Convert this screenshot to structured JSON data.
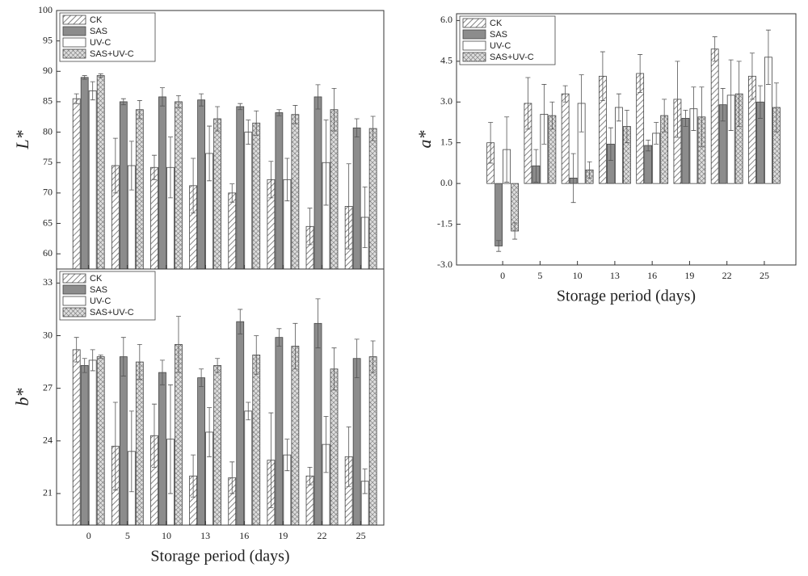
{
  "chart_data": [
    {
      "type": "bar",
      "ylabel": "L*",
      "categories": [
        "0",
        "5",
        "10",
        "13",
        "16",
        "19",
        "22",
        "25"
      ],
      "ylim": [
        57.5,
        100
      ],
      "yticks": [
        60,
        65,
        70,
        75,
        80,
        85,
        90,
        95,
        100
      ],
      "legend": "upper left",
      "series": [
        {
          "name": "CK",
          "color": "#ffffff",
          "pattern": "hatch",
          "values": [
            85.5,
            74.5,
            74.2,
            71.2,
            70,
            72.2,
            64.5,
            67.8
          ],
          "errors": [
            0.8,
            4.5,
            2,
            4.5,
            1.5,
            3,
            3,
            7
          ]
        },
        {
          "name": "SAS",
          "color": "#8c8c8c",
          "pattern": "solid",
          "values": [
            89,
            85,
            85.8,
            85.3,
            84.2,
            83.2,
            85.8,
            80.7
          ],
          "errors": [
            0.3,
            0.5,
            1.5,
            1,
            0.5,
            0.5,
            2,
            1.5
          ]
        },
        {
          "name": "UV-C",
          "color": "#ffffff",
          "pattern": "solid",
          "values": [
            86.8,
            74.5,
            74.2,
            76.5,
            80,
            72.2,
            75,
            66
          ],
          "errors": [
            1.5,
            4,
            5,
            4.5,
            2,
            3.5,
            7,
            5
          ]
        },
        {
          "name": "SAS+UV-C",
          "color": "#ffffff",
          "pattern": "cross",
          "values": [
            89.3,
            83.7,
            85,
            82.2,
            81.5,
            82.9,
            83.7,
            80.6
          ],
          "errors": [
            0.3,
            1.5,
            1,
            2,
            2,
            1.5,
            3.5,
            2
          ]
        }
      ]
    },
    {
      "type": "bar",
      "ylabel": "b*",
      "xlabel": "Storage period (days)",
      "categories": [
        "0",
        "5",
        "10",
        "13",
        "16",
        "19",
        "22",
        "25"
      ],
      "ylim": [
        19.2,
        33.8
      ],
      "yticks": [
        21,
        24,
        27,
        30,
        33
      ],
      "legend": "upper left",
      "series": [
        {
          "name": "CK",
          "color": "#ffffff",
          "pattern": "hatch",
          "values": [
            29.2,
            23.7,
            24.3,
            22.0,
            21.9,
            22.9,
            22.0,
            23.1
          ],
          "errors": [
            0.7,
            2.5,
            1.8,
            1.2,
            0.9,
            2.7,
            0.5,
            1.7
          ]
        },
        {
          "name": "SAS",
          "color": "#8c8c8c",
          "pattern": "solid",
          "values": [
            28.3,
            28.8,
            27.9,
            27.6,
            30.8,
            29.9,
            30.7,
            28.7
          ],
          "errors": [
            0.4,
            1.1,
            0.7,
            0.5,
            0.7,
            0.5,
            1.4,
            1.1
          ]
        },
        {
          "name": "UV-C",
          "color": "#ffffff",
          "pattern": "solid",
          "values": [
            28.6,
            23.4,
            24.1,
            24.5,
            25.7,
            23.2,
            23.8,
            21.7
          ],
          "errors": [
            0.6,
            2.3,
            3.1,
            1.4,
            0.5,
            0.9,
            1.6,
            0.7
          ]
        },
        {
          "name": "SAS+UV-C",
          "color": "#ffffff",
          "pattern": "cross",
          "values": [
            28.8,
            28.5,
            29.5,
            28.3,
            28.9,
            29.4,
            28.1,
            28.8
          ],
          "errors": [
            0.1,
            1.0,
            1.6,
            0.4,
            1.1,
            1.3,
            1.2,
            0.9
          ]
        }
      ]
    },
    {
      "type": "bar",
      "ylabel": "a*",
      "xlabel": "Storage period (days)",
      "categories": [
        "0",
        "5",
        "10",
        "13",
        "16",
        "19",
        "22",
        "25"
      ],
      "ylim": [
        -3,
        6.25
      ],
      "yticks": [
        {
          "value": -3,
          "label": "-3.0"
        },
        {
          "value": -1.5,
          "label": "-1.5"
        },
        {
          "value": 0,
          "label": "0.0"
        },
        {
          "value": 1.5,
          "label": "1.5"
        },
        {
          "value": 3,
          "label": "3.0"
        },
        {
          "value": 4.5,
          "label": "4.5"
        },
        {
          "value": 6,
          "label": "6.0"
        }
      ],
      "legend": "upper left",
      "series": [
        {
          "name": "CK",
          "color": "#ffffff",
          "pattern": "hatch",
          "values": [
            1.5,
            2.95,
            3.3,
            3.95,
            4.05,
            3.1,
            4.95,
            3.95
          ],
          "errors": [
            0.75,
            0.95,
            0.3,
            0.9,
            0.7,
            1.4,
            0.45,
            0.85
          ]
        },
        {
          "name": "SAS",
          "color": "#8c8c8c",
          "pattern": "solid",
          "values": [
            -2.3,
            0.65,
            0.2,
            1.45,
            1.4,
            2.4,
            2.9,
            3.0
          ],
          "errors": [
            0.2,
            0.6,
            0.9,
            0.6,
            0.2,
            0.3,
            0.6,
            0.6
          ]
        },
        {
          "name": "UV-C",
          "color": "#ffffff",
          "pattern": "solid",
          "values": [
            1.25,
            2.55,
            2.95,
            2.8,
            1.85,
            2.75,
            3.25,
            4.65
          ],
          "errors": [
            1.2,
            1.1,
            1.05,
            0.5,
            0.4,
            0.8,
            1.3,
            1.0
          ]
        },
        {
          "name": "SAS+UV-C",
          "color": "#ffffff",
          "pattern": "cross",
          "values": [
            -1.75,
            2.5,
            0.5,
            2.1,
            2.5,
            2.45,
            3.3,
            2.8
          ],
          "errors": [
            0.3,
            0.5,
            0.3,
            0.6,
            0.6,
            1.1,
            1.2,
            0.9
          ]
        }
      ]
    }
  ]
}
